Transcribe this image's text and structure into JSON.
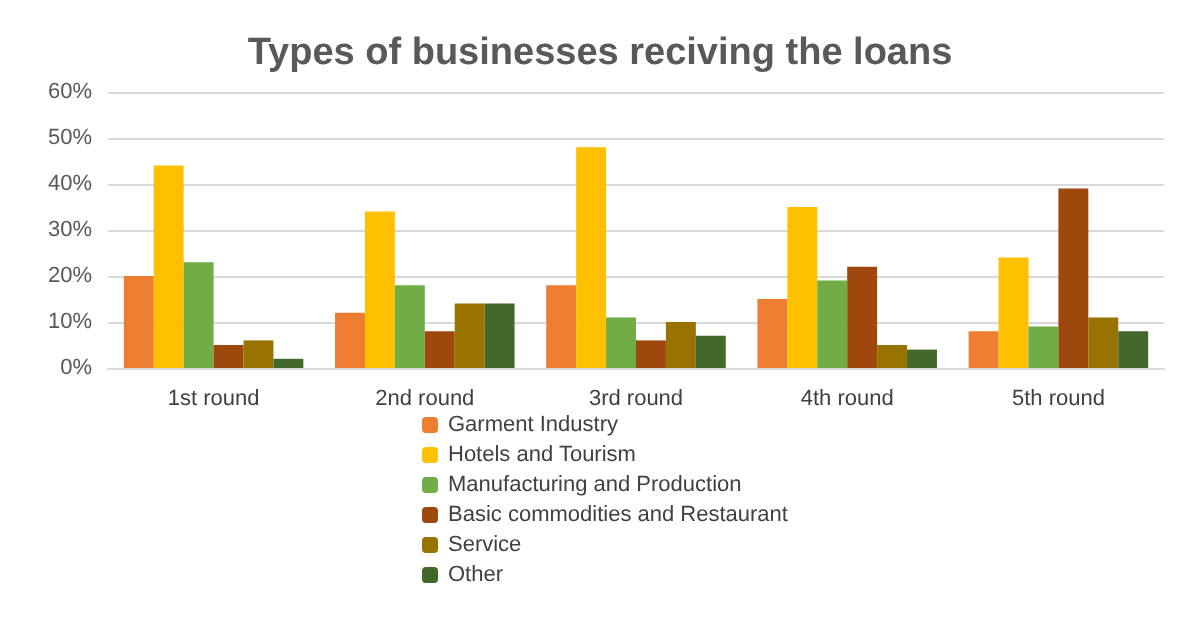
{
  "chart_data": {
    "type": "bar",
    "title": "Types of businesses reciving the loans",
    "categories": [
      "1st round",
      "2nd round",
      "3rd round",
      "4th round",
      "5th round"
    ],
    "series": [
      {
        "name": "Garment Industry",
        "color": "#ed7d31",
        "values": [
          20,
          12,
          18,
          15,
          8
        ]
      },
      {
        "name": "Hotels and Tourism",
        "color": "#ffc000",
        "values": [
          44,
          34,
          48,
          35,
          24
        ]
      },
      {
        "name": "Manufacturing and Production",
        "color": "#70ad47",
        "values": [
          23,
          18,
          11,
          19,
          9
        ]
      },
      {
        "name": "Basic commodities and Restaurant",
        "color": "#9e480e",
        "values": [
          5,
          8,
          6,
          22,
          39
        ]
      },
      {
        "name": "Service",
        "color": "#997300",
        "values": [
          6,
          14,
          10,
          5,
          11
        ]
      },
      {
        "name": "Other",
        "color": "#43682b",
        "values": [
          2,
          14,
          7,
          4,
          8
        ]
      }
    ],
    "ylim": [
      0,
      60
    ],
    "yticks": [
      {
        "value": 0,
        "label": "0%"
      },
      {
        "value": 10,
        "label": "10%"
      },
      {
        "value": 20,
        "label": "20%"
      },
      {
        "value": 30,
        "label": "30%"
      },
      {
        "value": 40,
        "label": "40%"
      },
      {
        "value": 50,
        "label": "50%"
      },
      {
        "value": 60,
        "label": "60%"
      }
    ],
    "grid": "y",
    "legend": "bottom"
  }
}
